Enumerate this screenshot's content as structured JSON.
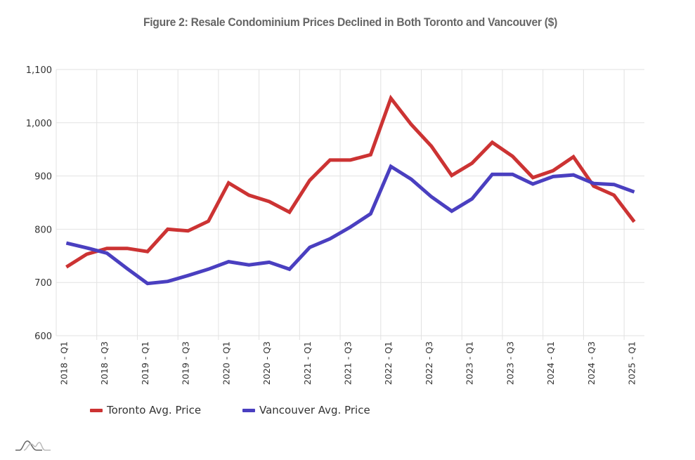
{
  "chart_data": {
    "type": "line",
    "title": "Figure 2: Resale Condominium Prices Declined in Both Toronto and Vancouver ($)",
    "xlabel": "",
    "ylabel": "",
    "ylim": [
      600,
      1100
    ],
    "yticks": [
      {
        "value": 600,
        "label": "600"
      },
      {
        "value": 700,
        "label": "700"
      },
      {
        "value": 800,
        "label": "800"
      },
      {
        "value": 900,
        "label": "900"
      },
      {
        "value": 1000,
        "label": "1,000"
      },
      {
        "value": 1100,
        "label": "1,100"
      }
    ],
    "grid": true,
    "legend_position": "bottom-left",
    "categories": [
      "2018 - Q1",
      "2018 - Q2",
      "2018 - Q3",
      "2018 - Q4",
      "2019 - Q1",
      "2019 - Q2",
      "2019 - Q3",
      "2019 - Q4",
      "2020 - Q1",
      "2020 - Q2",
      "2020 - Q3",
      "2020 - Q4",
      "2021 - Q1",
      "2021 - Q2",
      "2021 - Q3",
      "2021 - Q4",
      "2022 - Q1",
      "2022 - Q2",
      "2022 - Q3",
      "2022 - Q4",
      "2023 - Q1",
      "2023 - Q2",
      "2023 - Q3",
      "2023 - Q4",
      "2024 - Q1",
      "2024 - Q2",
      "2024 - Q3",
      "2024 - Q4",
      "2025 - Q1"
    ],
    "xtick_labels": [
      "2018 - Q1",
      "2018 - Q3",
      "2019 - Q1",
      "2019 - Q3",
      "2020 - Q1",
      "2020 - Q3",
      "2021 - Q1",
      "2021 - Q3",
      "2022 - Q1",
      "2022 - Q3",
      "2023 - Q1",
      "2023 - Q3",
      "2024 - Q1",
      "2024 - Q3",
      "2025 - Q1"
    ],
    "series": [
      {
        "name": "Toronto Avg. Price",
        "color": "#cc3333",
        "values": [
          729,
          753,
          764,
          764,
          758,
          800,
          797,
          815,
          887,
          864,
          852,
          832,
          892,
          930,
          930,
          940,
          1046,
          997,
          956,
          901,
          924,
          963,
          937,
          897,
          910,
          936,
          881,
          864,
          814
        ]
      },
      {
        "name": "Vancouver Avg. Price",
        "color": "#4a3fc0",
        "values": [
          774,
          765,
          755,
          726,
          698,
          702,
          713,
          725,
          739,
          733,
          738,
          725,
          766,
          782,
          804,
          829,
          918,
          894,
          861,
          834,
          857,
          903,
          903,
          885,
          899,
          902,
          886,
          884,
          870
        ]
      }
    ]
  },
  "logo": {
    "name": "chart-logo-icon"
  }
}
